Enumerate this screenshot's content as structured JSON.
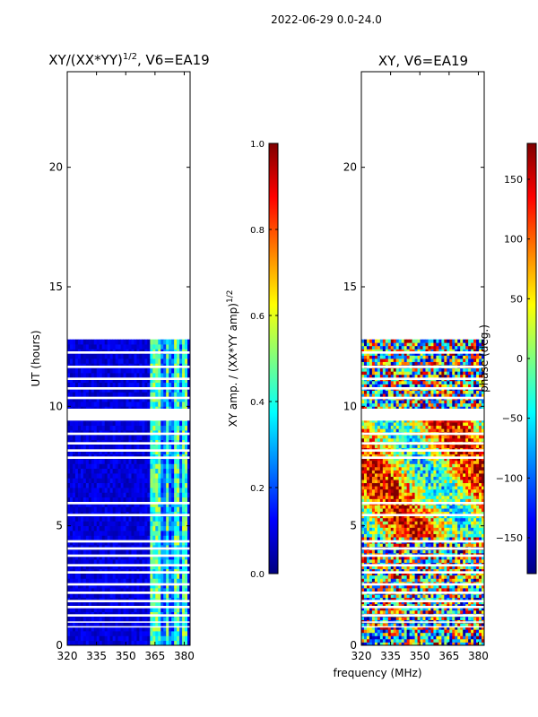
{
  "figure": {
    "suptitle": "2022-06-29 0.0-24.0",
    "shared_xlabel": "frequency (MHz)"
  },
  "chart_data": [
    {
      "type": "heatmap",
      "title_main": "XY/(XX*YY)",
      "title_sup": "1/2",
      "title_tail": ", V6=EA19",
      "ylabel": "UT (hours)",
      "xlim": [
        320,
        383
      ],
      "ylim": [
        0,
        24
      ],
      "xticks": [
        320,
        335,
        350,
        365,
        380
      ],
      "yticks": [
        0,
        5,
        10,
        15,
        20
      ],
      "data_extent_hours": [
        0,
        12.8
      ],
      "colorbar": {
        "label_main": "XY amp. / (XX*YY amp)",
        "label_sup": "1/2",
        "range": [
          0.0,
          1.0
        ],
        "ticks": [
          "0.0",
          "0.2",
          "0.4",
          "0.6",
          "0.8",
          "1.0"
        ],
        "colormap": "jet"
      }
    },
    {
      "type": "heatmap",
      "title": "XY, V6=EA19",
      "ylabel": "",
      "xlim": [
        320,
        383
      ],
      "ylim": [
        0,
        24
      ],
      "xticks": [
        320,
        335,
        350,
        365,
        380
      ],
      "yticks": [
        0,
        5,
        10,
        15,
        20
      ],
      "data_extent_hours": [
        0,
        12.8
      ],
      "colorbar": {
        "label": "phase (deg.)",
        "range": [
          -180,
          180
        ],
        "ticks": [
          "150",
          "100",
          "50",
          "0",
          "−50",
          "−100",
          "−150"
        ],
        "tick_values": [
          150,
          100,
          50,
          0,
          -50,
          -100,
          -150
        ],
        "colormap": "jet"
      }
    }
  ],
  "flagged_gap_hours": [
    [
      12.2,
      12.3
    ],
    [
      11.6,
      11.7
    ],
    [
      11.1,
      11.2
    ],
    [
      10.7,
      10.8
    ],
    [
      10.3,
      10.4
    ],
    [
      9.4,
      9.9
    ],
    [
      8.8,
      8.9
    ],
    [
      8.4,
      8.5
    ],
    [
      8.1,
      8.2
    ],
    [
      7.8,
      7.9
    ],
    [
      5.9,
      6.0
    ],
    [
      5.4,
      5.5
    ],
    [
      4.3,
      4.4
    ],
    [
      4.0,
      4.1
    ],
    [
      3.7,
      3.8
    ],
    [
      3.3,
      3.4
    ],
    [
      3.0,
      3.1
    ],
    [
      2.5,
      2.6
    ],
    [
      2.15,
      2.25
    ],
    [
      1.8,
      1.9
    ],
    [
      1.55,
      1.65
    ],
    [
      1.2,
      1.3
    ],
    [
      0.95,
      1.0
    ],
    [
      0.75,
      0.8
    ]
  ],
  "colors": {
    "jet_stops": [
      "#00007f",
      "#0000ff",
      "#007fff",
      "#00ffff",
      "#7fff7f",
      "#ffff00",
      "#ff7f00",
      "#ff0000",
      "#7f0000"
    ],
    "axes": "#000000",
    "background": "#ffffff"
  }
}
